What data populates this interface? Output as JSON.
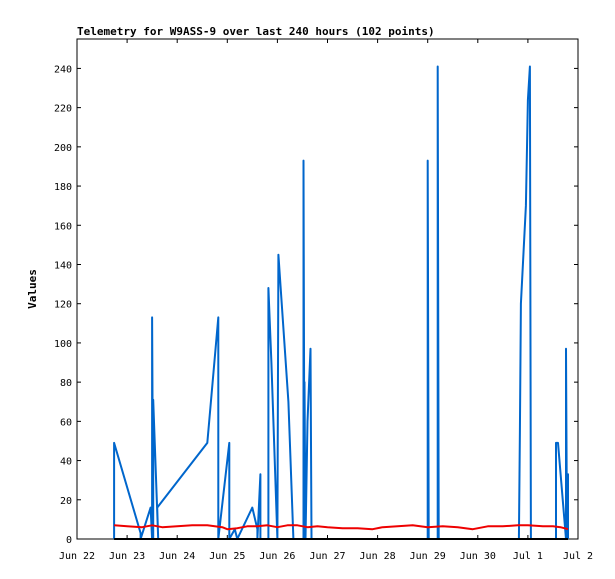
{
  "chart_data": {
    "type": "line",
    "title": "Telemetry for W9ASS-9 over last 240 hours (102 points)",
    "ylabel": "Values",
    "xlabel": "",
    "ylim": [
      0,
      255
    ],
    "xlim": [
      0,
      10
    ],
    "yticks": [
      0,
      20,
      40,
      60,
      80,
      100,
      120,
      140,
      160,
      180,
      200,
      220,
      240
    ],
    "xticks": [
      {
        "x": 0,
        "label": "Jun 22"
      },
      {
        "x": 1,
        "label": "Jun 23"
      },
      {
        "x": 2,
        "label": "Jun 24"
      },
      {
        "x": 3,
        "label": "Jun 25"
      },
      {
        "x": 4,
        "label": "Jun 26"
      },
      {
        "x": 5,
        "label": "Jun 27"
      },
      {
        "x": 6,
        "label": "Jun 28"
      },
      {
        "x": 7,
        "label": "Jun 29"
      },
      {
        "x": 8,
        "label": "Jun 30"
      },
      {
        "x": 9,
        "label": "Jul 1"
      },
      {
        "x": 10,
        "label": "Jul 2"
      }
    ],
    "grid": false,
    "series": [
      {
        "color": "#0066cc",
        "points": [
          [
            0.74,
            0
          ],
          [
            0.74,
            49
          ],
          [
            1.27,
            3
          ],
          [
            1.27,
            0
          ],
          [
            1.47,
            16
          ],
          [
            1.5,
            0
          ],
          [
            1.5,
            113
          ],
          [
            1.52,
            0
          ],
          [
            1.52,
            71
          ],
          [
            1.62,
            0
          ],
          [
            1.6,
            16
          ],
          [
            2.6,
            49
          ],
          [
            2.82,
            113
          ],
          [
            2.82,
            0
          ],
          [
            3.04,
            49
          ],
          [
            3.04,
            0
          ],
          [
            3.15,
            5
          ],
          [
            3.2,
            0
          ],
          [
            3.5,
            16
          ],
          [
            3.6,
            5
          ],
          [
            3.6,
            0
          ],
          [
            3.66,
            33
          ],
          [
            3.66,
            0
          ],
          [
            3.82,
            0
          ],
          [
            3.82,
            128
          ],
          [
            3.88,
            90
          ],
          [
            3.92,
            60
          ],
          [
            4.0,
            0
          ],
          [
            4.02,
            145
          ],
          [
            4.22,
            70
          ],
          [
            4.32,
            0
          ],
          [
            4.52,
            0
          ],
          [
            4.52,
            193
          ],
          [
            4.54,
            0
          ],
          [
            4.54,
            80
          ],
          [
            4.56,
            0
          ],
          [
            4.6,
            60
          ],
          [
            4.66,
            97
          ],
          [
            4.68,
            0
          ],
          [
            7.0,
            0
          ],
          [
            7.0,
            193
          ],
          [
            7.02,
            0
          ],
          [
            7.2,
            0
          ],
          [
            7.2,
            241
          ],
          [
            7.22,
            0
          ],
          [
            8.82,
            0
          ],
          [
            8.84,
            55
          ],
          [
            8.86,
            120
          ],
          [
            8.96,
            170
          ],
          [
            9.0,
            224
          ],
          [
            9.04,
            241
          ],
          [
            9.06,
            0
          ],
          [
            9.56,
            0
          ],
          [
            9.56,
            49
          ],
          [
            9.6,
            49
          ],
          [
            9.76,
            0
          ],
          [
            9.76,
            97
          ],
          [
            9.78,
            0
          ],
          [
            9.8,
            33
          ],
          [
            9.8,
            0
          ]
        ]
      },
      {
        "color": "#ee0000",
        "points": [
          [
            0.74,
            7
          ],
          [
            1.0,
            6.5
          ],
          [
            1.3,
            6
          ],
          [
            1.5,
            7
          ],
          [
            1.7,
            6
          ],
          [
            2.0,
            6.5
          ],
          [
            2.3,
            7
          ],
          [
            2.6,
            7
          ],
          [
            2.9,
            6
          ],
          [
            3.0,
            5
          ],
          [
            3.2,
            5.5
          ],
          [
            3.4,
            6.5
          ],
          [
            3.6,
            6.5
          ],
          [
            3.8,
            7
          ],
          [
            4.0,
            6
          ],
          [
            4.2,
            7
          ],
          [
            4.4,
            7
          ],
          [
            4.6,
            6
          ],
          [
            4.8,
            6.5
          ],
          [
            5.0,
            6
          ],
          [
            5.3,
            5.5
          ],
          [
            5.6,
            5.5
          ],
          [
            5.9,
            5
          ],
          [
            6.1,
            6
          ],
          [
            6.4,
            6.5
          ],
          [
            6.7,
            7
          ],
          [
            7.0,
            6
          ],
          [
            7.3,
            6.5
          ],
          [
            7.6,
            6
          ],
          [
            7.9,
            5
          ],
          [
            8.2,
            6.5
          ],
          [
            8.5,
            6.5
          ],
          [
            8.8,
            7
          ],
          [
            9.0,
            7
          ],
          [
            9.3,
            6.5
          ],
          [
            9.5,
            6.5
          ],
          [
            9.65,
            6
          ],
          [
            9.8,
            5
          ]
        ]
      },
      {
        "color": "#000000",
        "points": [
          [
            0.74,
            0
          ],
          [
            9.8,
            0
          ]
        ]
      }
    ]
  }
}
